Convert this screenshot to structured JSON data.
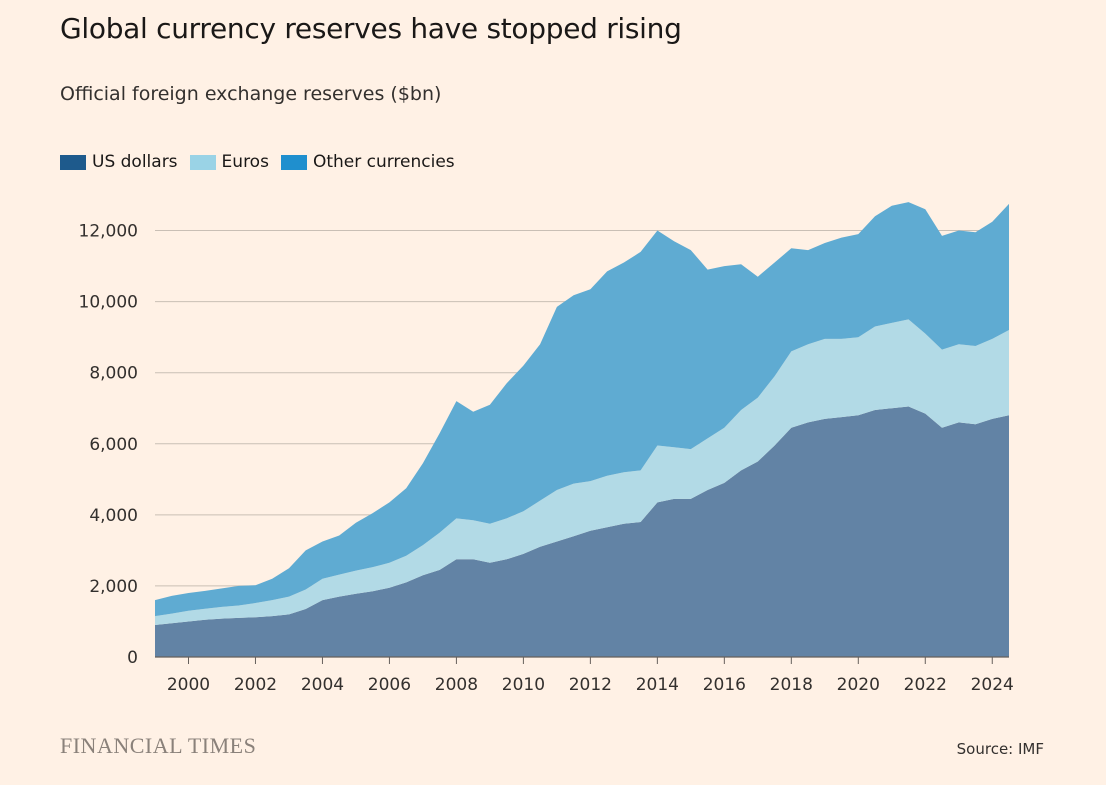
{
  "title": "Global currency reserves have stopped rising",
  "subtitle": "Official foreign exchange reserves ($bn)",
  "legend": [
    {
      "label": "US dollars",
      "color": "#1e5a8c"
    },
    {
      "label": "Euros",
      "color": "#9ad3e6"
    },
    {
      "label": "Other currencies",
      "color": "#1f8fce"
    }
  ],
  "brand": "FINANCIAL TIMES",
  "source": "Source: IMF",
  "colors": {
    "usd_area": "#6283a5",
    "eur_area": "#b2dae6",
    "other_area": "#5fabd2",
    "gridline": "#c9bfb5",
    "axis": "#66605c"
  },
  "chart_data": {
    "type": "area",
    "stacked": true,
    "x": [
      1999.0,
      1999.5,
      2000.0,
      2000.5,
      2001.0,
      2001.5,
      2002.0,
      2002.5,
      2003.0,
      2003.5,
      2004.0,
      2004.5,
      2005.0,
      2005.5,
      2006.0,
      2006.5,
      2007.0,
      2007.5,
      2008.0,
      2008.5,
      2009.0,
      2009.5,
      2010.0,
      2010.5,
      2011.0,
      2011.5,
      2012.0,
      2012.5,
      2013.0,
      2013.5,
      2014.0,
      2014.5,
      2015.0,
      2015.5,
      2016.0,
      2016.5,
      2017.0,
      2017.5,
      2018.0,
      2018.5,
      2019.0,
      2019.5,
      2020.0,
      2020.5,
      2021.0,
      2021.5,
      2022.0,
      2022.5,
      2023.0,
      2023.5,
      2024.0,
      2024.5
    ],
    "series": [
      {
        "name": "US dollars",
        "values": [
          900,
          950,
          1000,
          1050,
          1080,
          1100,
          1120,
          1150,
          1200,
          1350,
          1600,
          1700,
          1780,
          1850,
          1950,
          2100,
          2300,
          2450,
          2750,
          2750,
          2650,
          2750,
          2900,
          3100,
          3250,
          3400,
          3550,
          3650,
          3750,
          3800,
          4350,
          4450,
          4450,
          4700,
          4900,
          5250,
          5500,
          5950,
          6450,
          6600,
          6700,
          6750,
          6800,
          6950,
          7000,
          7050,
          6850,
          6450,
          6600,
          6550,
          6700,
          6800
        ]
      },
      {
        "name": "Euros",
        "values": [
          250,
          270,
          300,
          310,
          330,
          350,
          400,
          450,
          500,
          550,
          600,
          620,
          650,
          680,
          700,
          750,
          850,
          1050,
          1150,
          1100,
          1100,
          1150,
          1200,
          1300,
          1450,
          1480,
          1400,
          1450,
          1450,
          1450,
          1600,
          1450,
          1400,
          1450,
          1550,
          1700,
          1800,
          1950,
          2150,
          2200,
          2250,
          2200,
          2200,
          2350,
          2400,
          2450,
          2250,
          2200,
          2200,
          2200,
          2250,
          2400
        ]
      },
      {
        "name": "Other currencies",
        "values": [
          450,
          500,
          500,
          500,
          520,
          550,
          500,
          600,
          800,
          1100,
          1050,
          1100,
          1350,
          1520,
          1700,
          1900,
          2300,
          2800,
          3300,
          3050,
          3350,
          3800,
          4100,
          4400,
          5150,
          5300,
          5400,
          5750,
          5900,
          6150,
          6050,
          5800,
          5600,
          4750,
          4550,
          4100,
          3400,
          3200,
          2900,
          2650,
          2700,
          2850,
          2900,
          3100,
          3300,
          3300,
          3500,
          3200,
          3200,
          3200,
          3300,
          3550
        ]
      }
    ],
    "yticks": [
      0,
      2000,
      4000,
      6000,
      8000,
      10000,
      12000
    ],
    "ytick_labels": [
      "0",
      "2,000",
      "4,000",
      "6,000",
      "8,000",
      "10,000",
      "12,000"
    ],
    "xticks": [
      2000,
      2002,
      2004,
      2006,
      2008,
      2010,
      2012,
      2014,
      2016,
      2018,
      2020,
      2022,
      2024
    ],
    "xtick_labels": [
      "2000",
      "2002",
      "2004",
      "2006",
      "2008",
      "2010",
      "2012",
      "2014",
      "2016",
      "2018",
      "2020",
      "2022",
      "2024"
    ],
    "xlim": [
      1999.0,
      2024.5
    ],
    "ylim": [
      0,
      13000
    ],
    "grid": true,
    "legend_position": "top-left"
  }
}
